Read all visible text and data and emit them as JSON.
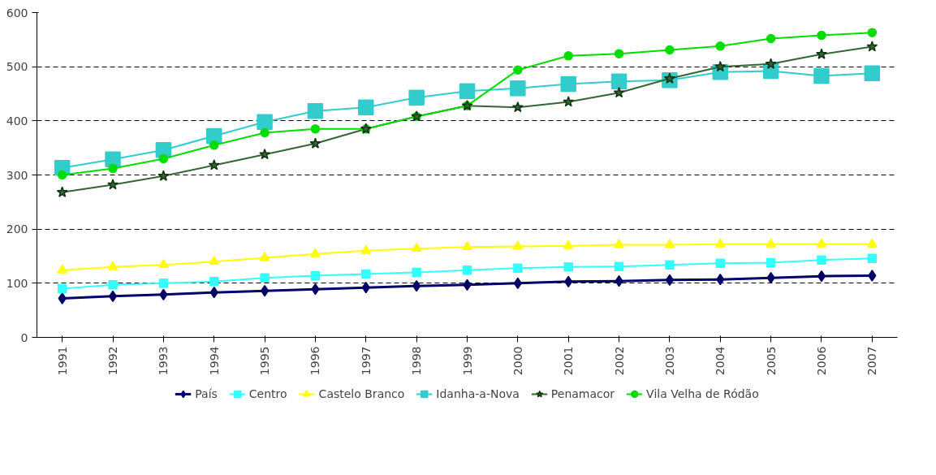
{
  "chart_data": {
    "type": "line",
    "categories": [
      "1991",
      "1992",
      "1993",
      "1994",
      "1995",
      "1996",
      "1997",
      "1998",
      "1999",
      "2000",
      "2001",
      "2002",
      "2003",
      "2004",
      "2005",
      "2006",
      "2007"
    ],
    "series": [
      {
        "name": "País",
        "color": "#000066",
        "marker": "diamond",
        "values": [
          72,
          76,
          79,
          83,
          86,
          89,
          92,
          95,
          97,
          100,
          103,
          104,
          106,
          107,
          110,
          113,
          114
        ]
      },
      {
        "name": "Centro",
        "color": "#33ffff",
        "marker": "square",
        "values": [
          90,
          97,
          100,
          103,
          110,
          114,
          117,
          120,
          124,
          128,
          130,
          131,
          134,
          137,
          138,
          143,
          146
        ]
      },
      {
        "name": "Castelo Branco",
        "color": "#ffff00",
        "marker": "triangle",
        "values": [
          124,
          130,
          134,
          140,
          147,
          154,
          160,
          164,
          167,
          168,
          169,
          171,
          171,
          172,
          172,
          172,
          172
        ]
      },
      {
        "name": "Idanha-a-Nova",
        "color": "#33cccc",
        "marker": "square",
        "values": [
          313,
          329,
          346,
          372,
          398,
          418,
          425,
          443,
          455,
          460,
          468,
          473,
          475,
          490,
          492,
          483,
          488
        ]
      },
      {
        "name": "Penamacor",
        "color": "#336633",
        "marker": "star",
        "values": [
          268,
          282,
          298,
          318,
          338,
          358,
          385,
          408,
          428,
          425,
          435,
          452,
          478,
          500,
          505,
          523,
          537
        ]
      },
      {
        "name": "Vila Velha de Ródão",
        "color": "#00dd00",
        "marker": "circle",
        "values": [
          300,
          312,
          330,
          355,
          378,
          385,
          385,
          408,
          428,
          494,
          520,
          524,
          531,
          538,
          552,
          558,
          563
        ]
      }
    ],
    "ylim": [
      0,
      600
    ],
    "yticks": [
      0,
      100,
      200,
      300,
      400,
      500,
      600
    ],
    "grid": "y",
    "legend": "bottom",
    "line_style": "solid"
  }
}
